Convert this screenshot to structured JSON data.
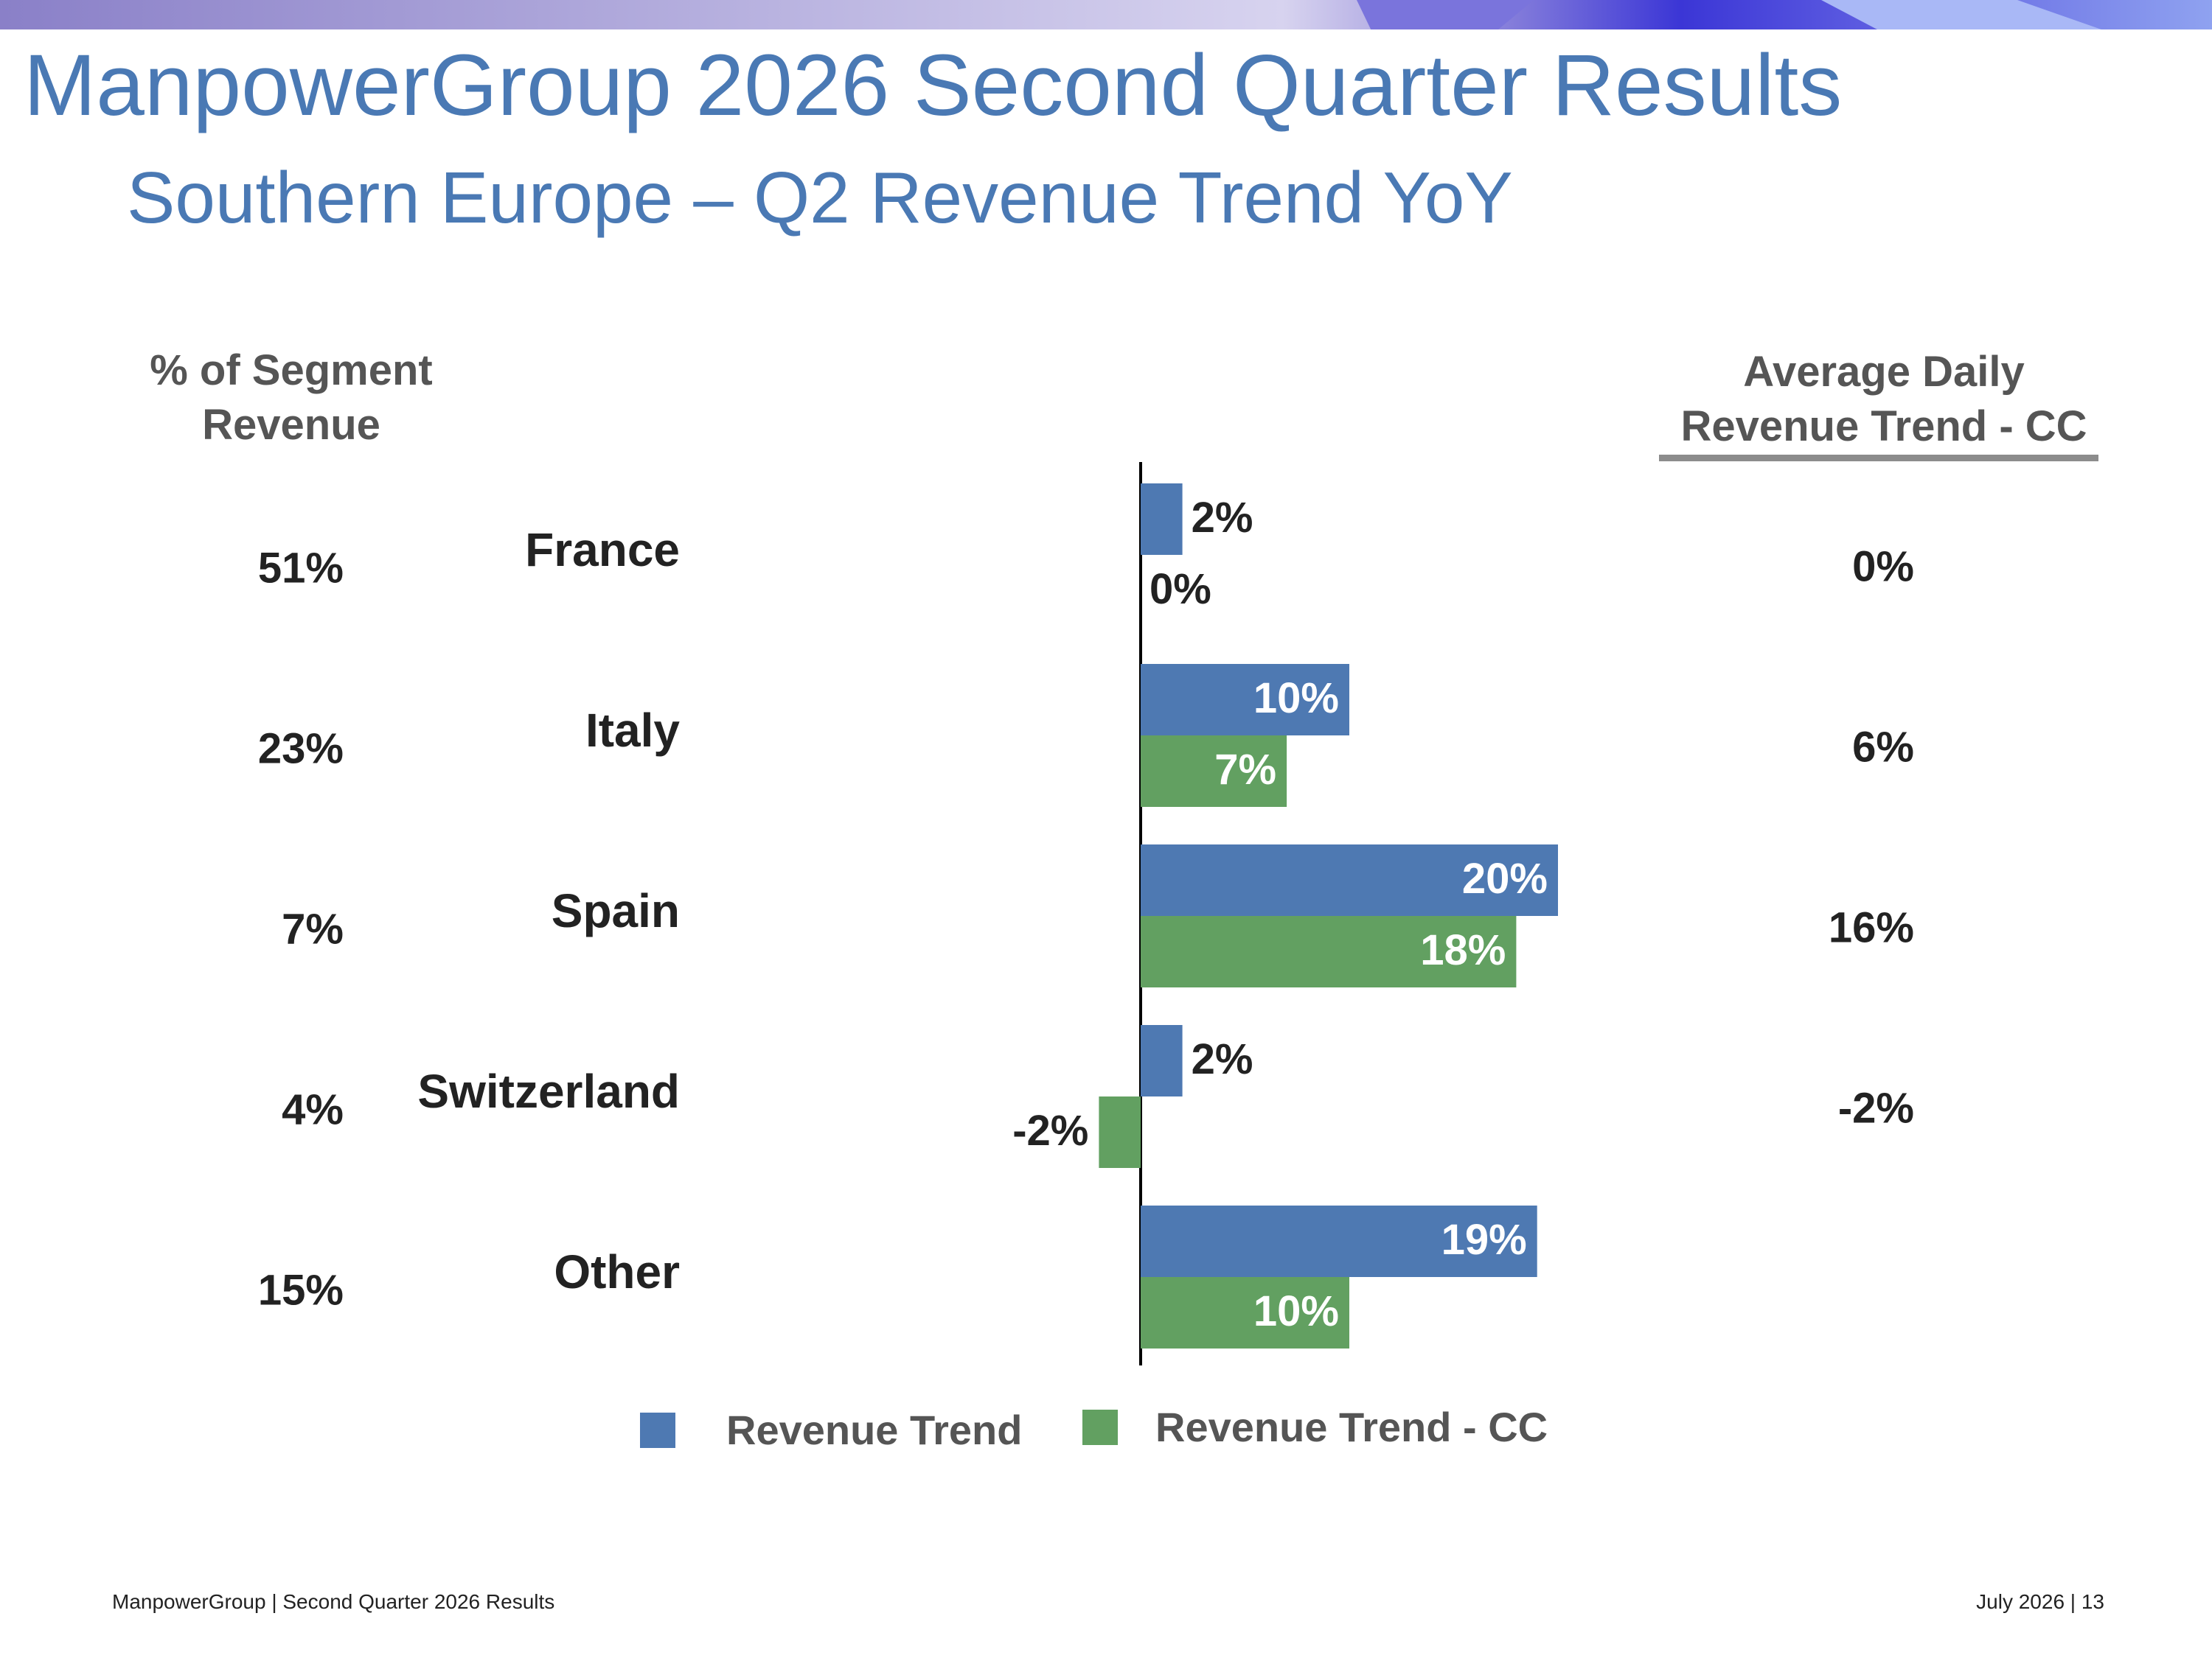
{
  "header": {
    "title": "ManpowerGroup 2026 Second Quarter Results",
    "subtitle": "Southern Europe – Q2 Revenue Trend YoY"
  },
  "columns": {
    "left_header_line1": "% of Segment",
    "left_header_line2": "Revenue",
    "right_header_line1": "Average Daily",
    "right_header_line2": "Revenue Trend - CC"
  },
  "colors": {
    "revenue_trend": "#4e79b2",
    "revenue_trend_cc": "#62a061",
    "title": "#4a79b4"
  },
  "chart_data": {
    "type": "bar",
    "orientation": "horizontal",
    "categories": [
      "France",
      "Italy",
      "Spain",
      "Switzerland",
      "Other"
    ],
    "series": [
      {
        "name": "Revenue Trend",
        "values": [
          2,
          10,
          20,
          2,
          19
        ],
        "labels": [
          "2%",
          "10%",
          "20%",
          "2%",
          "19%"
        ]
      },
      {
        "name": "Revenue Trend - CC",
        "values": [
          0,
          7,
          18,
          -2,
          10
        ],
        "labels": [
          "0%",
          "7%",
          "18%",
          "-2%",
          "10%"
        ]
      }
    ],
    "segment_revenue_share": [
      "51%",
      "23%",
      "7%",
      "4%",
      "15%"
    ],
    "avg_daily_revenue_trend_cc": [
      "0%",
      "6%",
      "16%",
      "-2%",
      ""
    ],
    "legend_position": "bottom",
    "grid": false
  },
  "footer": {
    "left": "ManpowerGroup  |  Second Quarter 2026 Results",
    "right": "July 2026   |   13"
  }
}
